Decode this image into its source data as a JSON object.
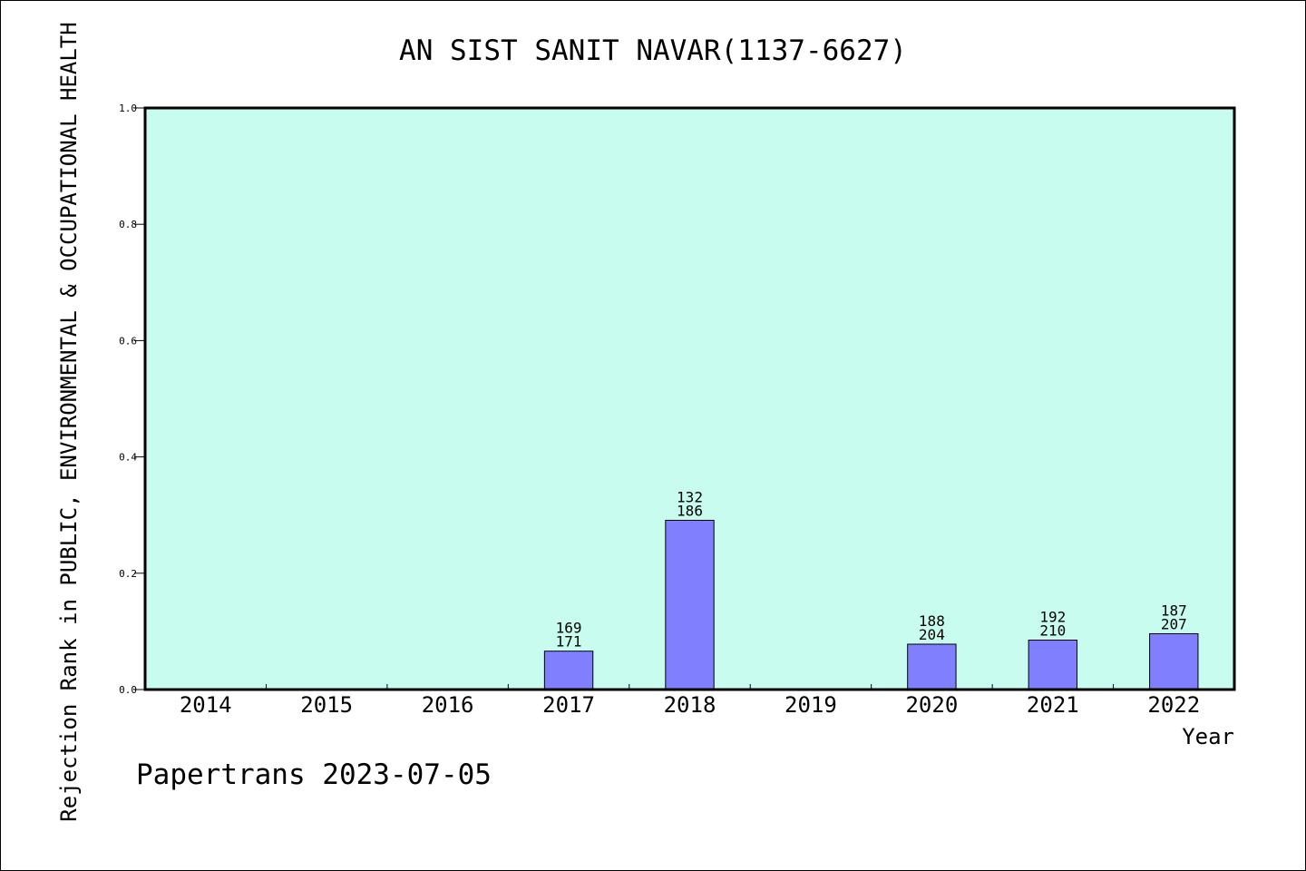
{
  "chart_data": {
    "type": "bar",
    "title": "AN SIST SANIT NAVAR(1137-6627)",
    "xlabel": "Year",
    "ylabel": "Rejection Rank in PUBLIC, ENVIRONMENTAL & OCCUPATIONAL HEALTH",
    "categories": [
      "2014",
      "2015",
      "2016",
      "2017",
      "2018",
      "2019",
      "2020",
      "2021",
      "2022"
    ],
    "values": [
      0,
      0,
      0,
      0.066,
      0.291,
      0,
      0.078,
      0.085,
      0.096
    ],
    "bar_labels_top": [
      "",
      "",
      "",
      "169",
      "132",
      "",
      "188",
      "192",
      "187"
    ],
    "bar_labels_bottom": [
      "",
      "",
      "",
      "171",
      "186",
      "",
      "204",
      "210",
      "207"
    ],
    "ylim": [
      0,
      1.0
    ],
    "yticks": [
      "0.0",
      "0.2",
      "0.4",
      "0.6",
      "0.8",
      "1.0"
    ],
    "grid": false,
    "colors": {
      "plot_background": "#c8fcee",
      "bar_fill": "#8080ff",
      "bar_stroke": "#000000"
    }
  },
  "footer": {
    "watermark": "Papertrans 2023-07-05"
  }
}
